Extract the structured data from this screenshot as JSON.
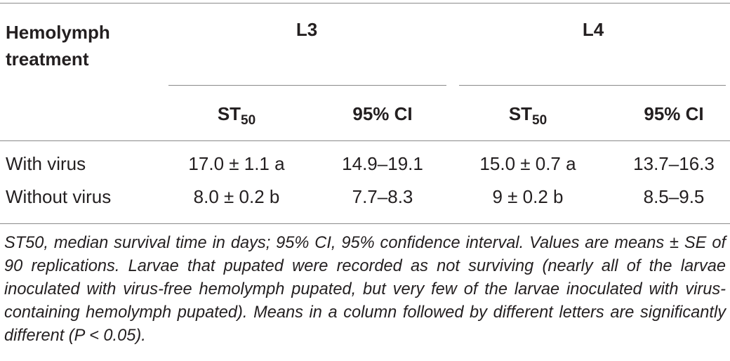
{
  "header": {
    "title": "Hemolymph treatment",
    "groups": [
      "L3",
      "L4"
    ],
    "subcolumns": [
      {
        "main": "ST",
        "sub": "50"
      },
      "95% CI",
      {
        "main": "ST",
        "sub": "50"
      },
      "95% CI"
    ]
  },
  "table": {
    "rows": [
      [
        "With virus",
        "17.0 ± 1.1 a",
        "14.9–19.1",
        "15.0 ± 0.7 a",
        "13.7–16.3"
      ],
      [
        "Without virus",
        "8.0 ± 0.2 b",
        "7.7–8.3",
        "9 ± 0.2 b",
        "8.5–9.5"
      ]
    ]
  },
  "footnote": "ST50, median survival time in days; 95% CI, 95% confidence interval. Values are means ± SE of 90 replications. Larvae that pupated were recorded as not surviving (nearly all of the larvae inoculated with virus-free hemolymph pupated, but very few of the larvae inoculated with virus-containing hemolymph pupated). Means in a column followed by different letters are significantly different (P < 0.05)."
}
